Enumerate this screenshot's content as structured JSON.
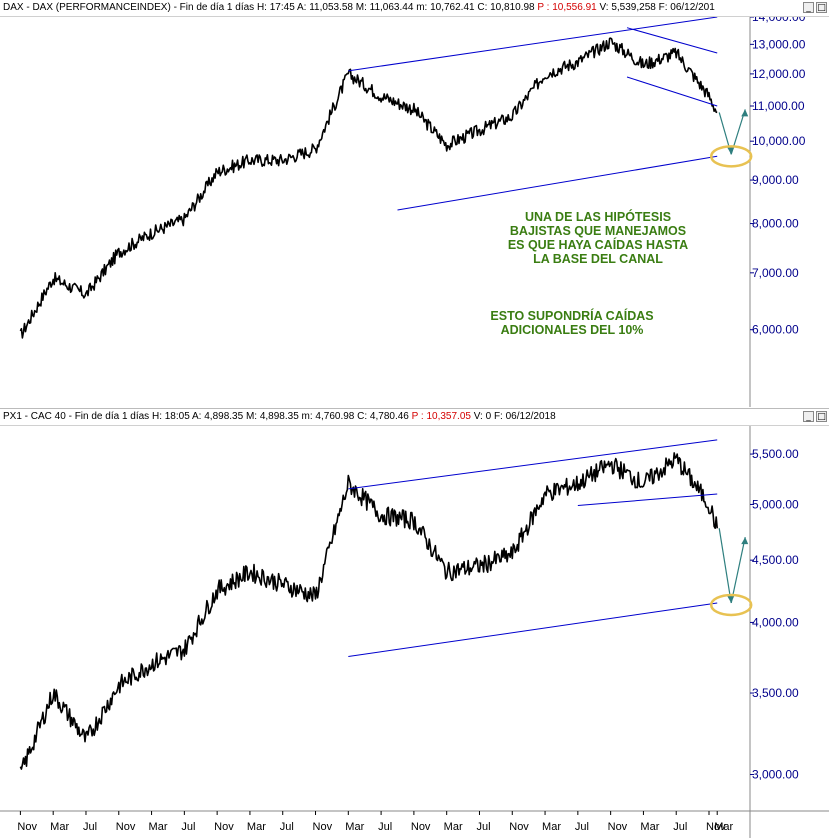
{
  "panes": [
    {
      "id": "dax",
      "header": {
        "name": "DAX - DAX (PERFORMANCEINDEX) - Fin de día 1 días",
        "h": "H: 17:45",
        "a": "A: 11,053.58",
        "m": "M: 11,063.44",
        "low": "m: 10,762.41",
        "c": "C: 10,810.98",
        "p": "P : 10,556.91",
        "v": "V: 5,539,258",
        "f": "F: 06/12/201"
      },
      "annotations": [
        [
          "UNA DE LAS HIPÓTESIS",
          "BAJISTAS QUE MANEJAMOS",
          "ES QUE HAYA CAÍDAS HASTA",
          "LA BASE DEL CANAL"
        ],
        [
          "ESTO SUPONDRÍA CAÍDAS",
          "ADICIONALES DEL 10%"
        ]
      ]
    },
    {
      "id": "cac",
      "header": {
        "name": "PX1 - CAC 40 - Fin de día 1 días",
        "h": "H: 18:05",
        "a": "A: 4,898.35",
        "m": "M: 4,898.35",
        "low": "m: 4,760.98",
        "c": "C: 4,780.46",
        "p": "P : 10,357.05",
        "v": "V: 0",
        "f": "F: 06/12/2018"
      },
      "annotations": []
    }
  ],
  "window_buttons": [
    "_",
    "□"
  ],
  "colors": {
    "price_line": "#000000",
    "channel_line": "#0000cd",
    "axis_text": "#00008b",
    "annotation_text": "#3a7d12",
    "target_ellipse": "#e8c252",
    "projection_arrow": "#2f7f7f"
  },
  "chart_data": [
    {
      "type": "line",
      "title": "DAX - DAX (PERFORMANCEINDEX)",
      "y_scale": "log",
      "ylim": [
        5000,
        14000
      ],
      "y_ticks": [
        "6,000.00",
        "7,000.00",
        "8,000.00",
        "9,000.00",
        "10,000.00",
        "11,000.00",
        "12,000.00",
        "13,000.00",
        "14,000.00"
      ],
      "x_ticks": [
        "Nov",
        "Mar",
        "Jul",
        "Nov",
        "Mar",
        "Jul",
        "Nov",
        "Mar",
        "Jul",
        "Nov",
        "Mar",
        "Jul",
        "Nov",
        "Mar",
        "Jul",
        "Nov",
        "Mar",
        "Jul",
        "Nov",
        "Mar",
        "Jul",
        "Nov",
        "Mar"
      ],
      "x": [
        "2011-11",
        "2012-03",
        "2012-07",
        "2012-11",
        "2013-03",
        "2013-07",
        "2013-11",
        "2014-03",
        "2014-07",
        "2014-11",
        "2015-03",
        "2015-07",
        "2015-11",
        "2016-03",
        "2016-07",
        "2016-11",
        "2017-03",
        "2017-07",
        "2017-11",
        "2018-03",
        "2018-07",
        "2018-11",
        "2018-12"
      ],
      "series": [
        {
          "values": [
            5900,
            6900,
            6600,
            7400,
            7800,
            8100,
            9200,
            9500,
            9500,
            9800,
            12000,
            11300,
            10900,
            9900,
            10300,
            10700,
            12000,
            12400,
            13100,
            12300,
            12700,
            11300,
            10810
          ]
        }
      ],
      "channel_lines": [
        {
          "label": "upper",
          "from": [
            "2015-03",
            12100
          ],
          "to": [
            "2018-12",
            14000
          ]
        },
        {
          "label": "lower",
          "from": [
            "2015-09",
            8300
          ],
          "to": [
            "2018-12",
            9600
          ]
        },
        {
          "label": "recent-upper",
          "from": [
            "2018-01",
            13600
          ],
          "to": [
            "2018-12",
            12700
          ]
        },
        {
          "label": "recent-lower",
          "from": [
            "2018-01",
            11900
          ],
          "to": [
            "2018-12",
            11000
          ]
        }
      ],
      "projection": {
        "target": 9650,
        "rebound": 10900
      }
    },
    {
      "type": "line",
      "title": "PX1 - CAC 40",
      "y_scale": "log",
      "ylim": [
        2800,
        5800
      ],
      "y_ticks": [
        "3,000.00",
        "3,500.00",
        "4,000.00",
        "4,500.00",
        "5,000.00",
        "5,500.00"
      ],
      "x_ticks": [
        "Nov",
        "Mar",
        "Jul",
        "Nov",
        "Mar",
        "Jul",
        "Nov",
        "Mar",
        "Jul",
        "Nov",
        "Mar",
        "Jul",
        "Nov",
        "Mar",
        "Jul",
        "Nov",
        "Mar",
        "Jul",
        "Nov",
        "Mar",
        "Jul",
        "Nov",
        "Mar"
      ],
      "x": [
        "2011-11",
        "2012-03",
        "2012-07",
        "2012-11",
        "2013-03",
        "2013-07",
        "2013-11",
        "2014-03",
        "2014-07",
        "2014-11",
        "2015-03",
        "2015-07",
        "2015-11",
        "2016-03",
        "2016-07",
        "2016-11",
        "2017-03",
        "2017-07",
        "2017-11",
        "2018-03",
        "2018-07",
        "2018-11",
        "2018-12"
      ],
      "series": [
        {
          "values": [
            3000,
            3500,
            3200,
            3550,
            3700,
            3800,
            4250,
            4400,
            4300,
            4200,
            5200,
            4900,
            4850,
            4400,
            4450,
            4550,
            5100,
            5200,
            5400,
            5200,
            5450,
            5000,
            4780
          ]
        }
      ],
      "channel_lines": [
        {
          "label": "upper",
          "from": [
            "2015-03",
            5150
          ],
          "to": [
            "2018-12",
            5650
          ]
        },
        {
          "label": "lower",
          "from": [
            "2015-03",
            3750
          ],
          "to": [
            "2018-12",
            4150
          ]
        },
        {
          "label": "support",
          "from": [
            "2017-07",
            4990
          ],
          "to": [
            "2018-12",
            5100
          ]
        }
      ],
      "projection": {
        "target": 4150,
        "rebound": 4700
      }
    }
  ]
}
